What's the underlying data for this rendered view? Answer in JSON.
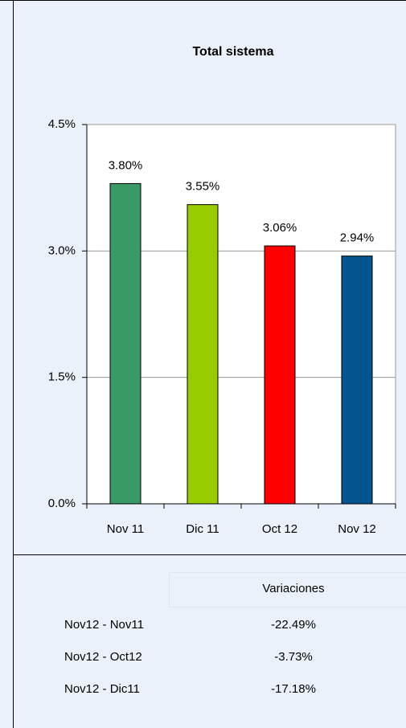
{
  "chart_data": {
    "type": "bar",
    "title": "Total sistema",
    "categories": [
      "Nov 11",
      "Dic 11",
      "Oct 12",
      "Nov 12"
    ],
    "values": [
      3.8,
      3.55,
      3.06,
      2.94
    ],
    "value_labels": [
      "3.80%",
      "3.55%",
      "3.06%",
      "2.94%"
    ],
    "colors": [
      "#3a9a67",
      "#99cc00",
      "#ff0000",
      "#02558f"
    ],
    "ylim": [
      0,
      4.5
    ],
    "yticks": [
      {
        "value": 0,
        "label": "0.0%"
      },
      {
        "value": 1.5,
        "label": "1.5%"
      },
      {
        "value": 3.0,
        "label": "3.0%"
      },
      {
        "value": 4.5,
        "label": "4.5%"
      }
    ],
    "grid": true
  },
  "table": {
    "header": "Variaciones",
    "rows": [
      [
        "Nov12 - Nov11",
        "-22.49%"
      ],
      [
        "Nov12 - Oct12",
        "-3.73%"
      ],
      [
        "Nov12 - Dic11",
        "-17.18%"
      ]
    ]
  }
}
